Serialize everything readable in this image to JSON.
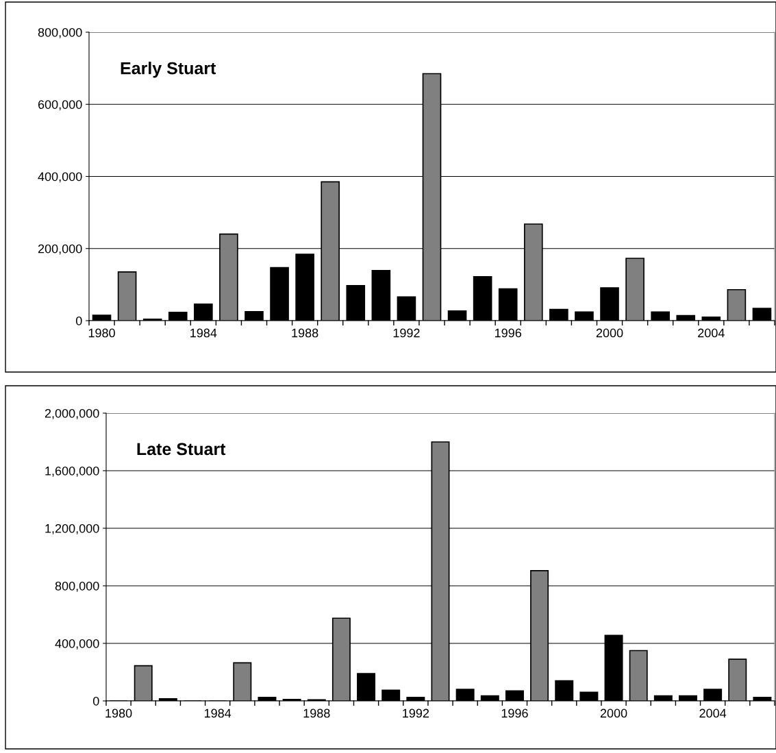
{
  "chart_data": [
    {
      "type": "bar",
      "title": "Early Stuart",
      "categories": [
        "1980",
        null,
        null,
        null,
        "1984",
        null,
        null,
        null,
        "1988",
        null,
        null,
        null,
        "1992",
        null,
        null,
        null,
        "1996",
        null,
        null,
        null,
        "2000",
        null,
        null,
        null,
        "2004",
        null,
        null
      ],
      "values": [
        15000,
        135000,
        4000,
        23000,
        46000,
        240000,
        25000,
        147000,
        184000,
        385000,
        97000,
        139000,
        66000,
        685000,
        27000,
        122000,
        88000,
        268000,
        31000,
        24000,
        91000,
        173000,
        24000,
        14000,
        10000,
        86000,
        34000
      ],
      "colors": [
        "#000000",
        "#808080",
        "#000000",
        "#000000",
        "#000000",
        "#808080",
        "#000000",
        "#000000",
        "#000000",
        "#808080",
        "#000000",
        "#000000",
        "#000000",
        "#808080",
        "#000000",
        "#000000",
        "#000000",
        "#808080",
        "#000000",
        "#000000",
        "#000000",
        "#808080",
        "#000000",
        "#000000",
        "#000000",
        "#808080",
        "#000000"
      ],
      "ylim": [
        0,
        800000
      ],
      "yticks": [
        {
          "value": 0,
          "label": "0"
        },
        {
          "value": 200000,
          "label": "200,000"
        },
        {
          "value": 400000,
          "label": "400,000"
        },
        {
          "value": 600000,
          "label": "600,000"
        },
        {
          "value": 800000,
          "label": "800,000"
        }
      ],
      "grid": "y"
    },
    {
      "type": "bar",
      "title": "Late Stuart",
      "categories": [
        "1980",
        null,
        null,
        null,
        "1984",
        null,
        null,
        null,
        "1988",
        null,
        null,
        null,
        "1992",
        null,
        null,
        null,
        "1996",
        null,
        null,
        null,
        "2000",
        null,
        null,
        null,
        "2004",
        null,
        null
      ],
      "values": [
        0,
        245000,
        15000,
        0,
        0,
        265000,
        25000,
        10000,
        8000,
        575000,
        190000,
        75000,
        25000,
        1800000,
        80000,
        35000,
        70000,
        905000,
        140000,
        60000,
        455000,
        350000,
        35000,
        35000,
        80000,
        290000,
        25000
      ],
      "colors": [
        "#000000",
        "#808080",
        "#000000",
        "#000000",
        "#000000",
        "#808080",
        "#000000",
        "#000000",
        "#000000",
        "#808080",
        "#000000",
        "#000000",
        "#000000",
        "#808080",
        "#000000",
        "#000000",
        "#000000",
        "#808080",
        "#000000",
        "#000000",
        "#000000",
        "#808080",
        "#000000",
        "#000000",
        "#000000",
        "#808080",
        "#000000"
      ],
      "ylim": [
        0,
        2000000
      ],
      "yticks": [
        {
          "value": 0,
          "label": "0"
        },
        {
          "value": 400000,
          "label": "400,000"
        },
        {
          "value": 800000,
          "label": "800,000"
        },
        {
          "value": 1200000,
          "label": "1,200,000"
        },
        {
          "value": 1600000,
          "label": "1,600,000"
        },
        {
          "value": 2000000,
          "label": "2,000,000"
        }
      ],
      "grid": "y"
    }
  ]
}
